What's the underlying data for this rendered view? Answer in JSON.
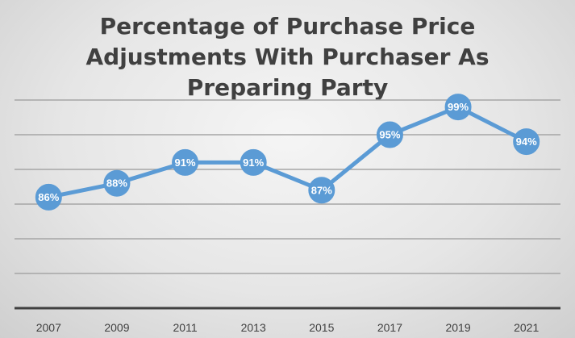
{
  "chart_data": {
    "type": "line",
    "title_lines": [
      "Percentage of Purchase Price",
      "Adjustments With Purchaser As",
      "Preparing Party"
    ],
    "title": "Percentage of Purchase Price Adjustments With Purchaser As Preparing Party",
    "xlabel": "",
    "ylabel": "",
    "categories": [
      "2007",
      "2009",
      "2011",
      "2013",
      "2015",
      "2017",
      "2019",
      "2021"
    ],
    "series": [
      {
        "values": [
          86,
          88,
          91,
          91,
          87,
          95,
          99,
          94
        ],
        "data_labels": [
          "86%",
          "88%",
          "91%",
          "91%",
          "87%",
          "95%",
          "99%",
          "94%"
        ]
      }
    ],
    "ylim": [
      70,
      100
    ],
    "y_gridlines": [
      75,
      80,
      85,
      90,
      95,
      100
    ],
    "grid": true,
    "y_tick_labels_shown": false,
    "legend": "none",
    "colors": {
      "series": "#5b9bd5",
      "grid": "#a6a6a6",
      "axis": "#404040",
      "title": "#404040",
      "label_text": "#ffffff"
    }
  }
}
